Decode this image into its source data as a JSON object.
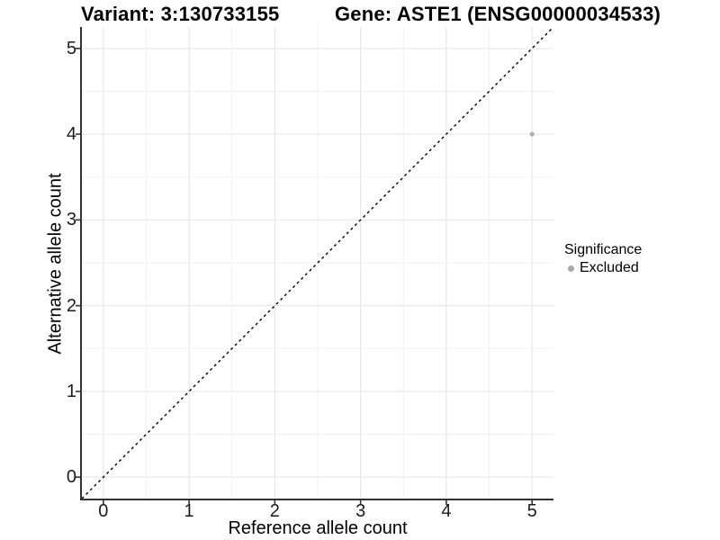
{
  "chart_data": {
    "type": "scatter",
    "titles": {
      "left": "Variant: 3:130733155",
      "right": "Gene: ASTE1 (ENSG00000034533)"
    },
    "xlabel": "Reference allele count",
    "ylabel": "Alternative allele count",
    "xlim": [
      -0.25,
      5.25
    ],
    "ylim": [
      -0.25,
      5.25
    ],
    "x_ticks": [
      0,
      1,
      2,
      3,
      4,
      5
    ],
    "y_ticks": [
      0,
      1,
      2,
      3,
      4,
      5
    ],
    "grid": {
      "major": true,
      "minor": true
    },
    "reference_line": {
      "type": "identity",
      "style": "dashed",
      "from": [
        -0.25,
        -0.25
      ],
      "to": [
        5.25,
        5.25
      ],
      "color": "#000000"
    },
    "series": [
      {
        "name": "Excluded",
        "color": "#adadad",
        "points": [
          {
            "x": 5,
            "y": 4
          }
        ]
      }
    ],
    "legend": {
      "title": "Significance",
      "position": "right",
      "entries": [
        {
          "label": "Excluded",
          "color": "#a8a8a8"
        }
      ]
    }
  },
  "colors": {
    "background": "#ffffff",
    "axis_line": "#333333",
    "tick_mark": "#333333",
    "grid_major": "#e3e3e3",
    "grid_minor": "#f1f1f1",
    "tick_text": "#1c1c1c"
  }
}
